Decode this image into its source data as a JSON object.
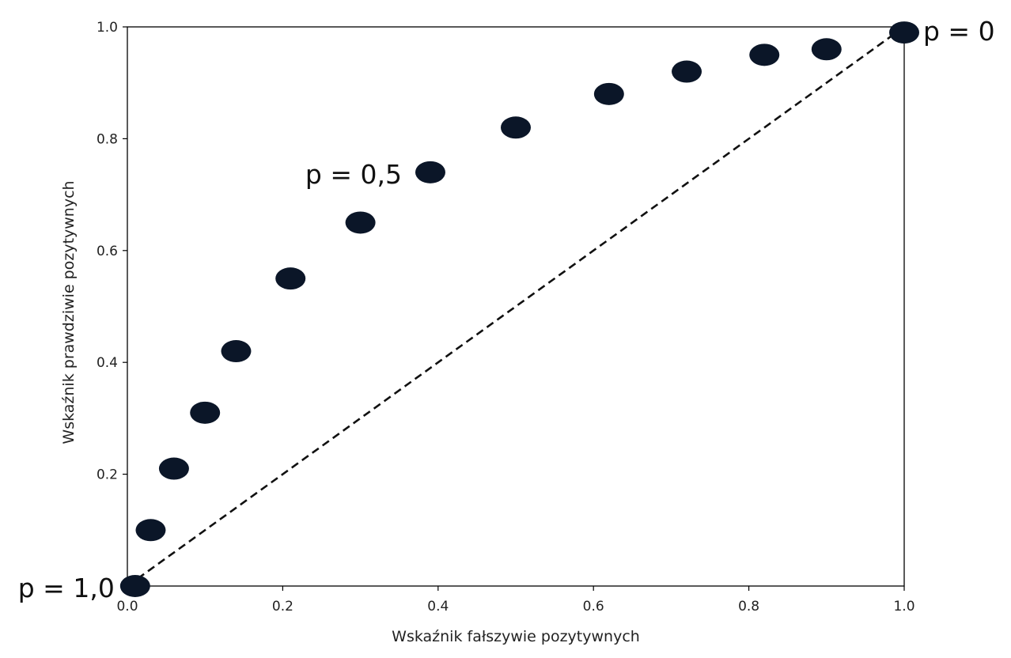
{
  "chart_data": {
    "type": "scatter",
    "title": "",
    "xlabel": "Wskaźnik fałszywie pozytywnych",
    "ylabel": "Wskaźnik prawdziwie pozytywnych",
    "xlim": [
      0.0,
      1.0
    ],
    "ylim": [
      0.0,
      1.0
    ],
    "xticks": [
      "0.0",
      "0.2",
      "0.4",
      "0.6",
      "0.8",
      "1.0"
    ],
    "yticks": [
      "0.2",
      "0.4",
      "0.6",
      "0.8",
      "1.0"
    ],
    "grid": false,
    "points": {
      "x": [
        0.01,
        0.03,
        0.06,
        0.1,
        0.14,
        0.21,
        0.3,
        0.39,
        0.5,
        0.62,
        0.72,
        0.82,
        0.9,
        1.0
      ],
      "y": [
        0.0,
        0.1,
        0.21,
        0.31,
        0.42,
        0.55,
        0.65,
        0.74,
        0.82,
        0.88,
        0.92,
        0.95,
        0.96,
        0.99
      ]
    },
    "reference_line": {
      "x": [
        0.0,
        1.0
      ],
      "y": [
        0.0,
        1.0
      ],
      "style": "dashed"
    },
    "annotations": [
      {
        "text": "p = 1,0",
        "x": 0.01,
        "y": 0.0
      },
      {
        "text": "p = 0,5",
        "x": 0.39,
        "y": 0.74
      },
      {
        "text": "p = 0",
        "x": 1.0,
        "y": 0.99
      }
    ],
    "colors": {
      "point": "#0b1628",
      "line": "#111111",
      "frame": "#000000"
    }
  }
}
